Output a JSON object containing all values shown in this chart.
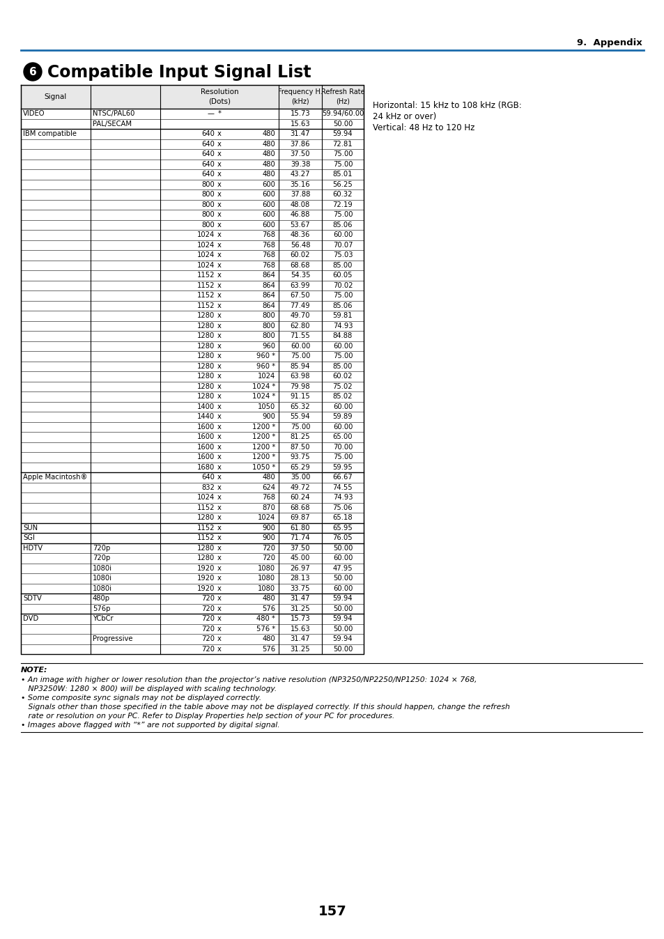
{
  "title": "Compatible Input Signal List",
  "section_num": "6",
  "appendix_label": "9.  Appendix",
  "page_num": "157",
  "side_note_line1": "Horizontal: 15 kHz to 108 kHz (RGB:",
  "side_note_line2": "24 kHz or over)",
  "side_note_line3": "Vertical: 48 Hz to 120 Hz",
  "rows": [
    [
      "VIDEO",
      "NTSC/PAL60",
      "—",
      "*",
      "15.73",
      "59.94/60.00"
    ],
    [
      "",
      "PAL/SECAM",
      "",
      "*",
      "15.63",
      "50.00"
    ],
    [
      "IBM compatible",
      "",
      "640",
      "480",
      "31.47",
      "59.94"
    ],
    [
      "",
      "",
      "640",
      "480",
      "37.86",
      "72.81"
    ],
    [
      "",
      "",
      "640",
      "480",
      "37.50",
      "75.00"
    ],
    [
      "",
      "",
      "640",
      "480",
      "39.38",
      "75.00"
    ],
    [
      "",
      "",
      "640",
      "480",
      "43.27",
      "85.01"
    ],
    [
      "",
      "",
      "800",
      "600",
      "35.16",
      "56.25"
    ],
    [
      "",
      "",
      "800",
      "600",
      "37.88",
      "60.32"
    ],
    [
      "",
      "",
      "800",
      "600",
      "48.08",
      "72.19"
    ],
    [
      "",
      "",
      "800",
      "600",
      "46.88",
      "75.00"
    ],
    [
      "",
      "",
      "800",
      "600",
      "53.67",
      "85.06"
    ],
    [
      "",
      "",
      "1024",
      "768",
      "48.36",
      "60.00"
    ],
    [
      "",
      "",
      "1024",
      "768",
      "56.48",
      "70.07"
    ],
    [
      "",
      "",
      "1024",
      "768",
      "60.02",
      "75.03"
    ],
    [
      "",
      "",
      "1024",
      "768",
      "68.68",
      "85.00"
    ],
    [
      "",
      "",
      "1152",
      "864",
      "54.35",
      "60.05"
    ],
    [
      "",
      "",
      "1152",
      "864",
      "63.99",
      "70.02"
    ],
    [
      "",
      "",
      "1152",
      "864",
      "67.50",
      "75.00"
    ],
    [
      "",
      "",
      "1152",
      "864",
      "77.49",
      "85.06"
    ],
    [
      "",
      "",
      "1280",
      "800",
      "49.70",
      "59.81"
    ],
    [
      "",
      "",
      "1280",
      "800",
      "62.80",
      "74.93"
    ],
    [
      "",
      "",
      "1280",
      "800",
      "71.55",
      "84.88"
    ],
    [
      "",
      "",
      "1280",
      "960",
      "60.00",
      "60.00"
    ],
    [
      "",
      "",
      "1280",
      "960 *",
      "75.00",
      "75.00"
    ],
    [
      "",
      "",
      "1280",
      "960 *",
      "85.94",
      "85.00"
    ],
    [
      "",
      "",
      "1280",
      "1024",
      "63.98",
      "60.02"
    ],
    [
      "",
      "",
      "1280",
      "1024 *",
      "79.98",
      "75.02"
    ],
    [
      "",
      "",
      "1280",
      "1024 *",
      "91.15",
      "85.02"
    ],
    [
      "",
      "",
      "1400",
      "1050",
      "65.32",
      "60.00"
    ],
    [
      "",
      "",
      "1440",
      "900",
      "55.94",
      "59.89"
    ],
    [
      "",
      "",
      "1600",
      "1200 *",
      "75.00",
      "60.00"
    ],
    [
      "",
      "",
      "1600",
      "1200 *",
      "81.25",
      "65.00"
    ],
    [
      "",
      "",
      "1600",
      "1200 *",
      "87.50",
      "70.00"
    ],
    [
      "",
      "",
      "1600",
      "1200 *",
      "93.75",
      "75.00"
    ],
    [
      "",
      "",
      "1680",
      "1050 *",
      "65.29",
      "59.95"
    ],
    [
      "Apple Macintosh®",
      "",
      "640",
      "480",
      "35.00",
      "66.67"
    ],
    [
      "",
      "",
      "832",
      "624",
      "49.72",
      "74.55"
    ],
    [
      "",
      "",
      "1024",
      "768",
      "60.24",
      "74.93"
    ],
    [
      "",
      "",
      "1152",
      "870",
      "68.68",
      "75.06"
    ],
    [
      "",
      "",
      "1280",
      "1024",
      "69.87",
      "65.18"
    ],
    [
      "SUN",
      "",
      "1152",
      "900",
      "61.80",
      "65.95"
    ],
    [
      "SGI",
      "",
      "1152",
      "900",
      "71.74",
      "76.05"
    ],
    [
      "HDTV",
      "720p",
      "1280",
      "720",
      "37.50",
      "50.00"
    ],
    [
      "",
      "720p",
      "1280",
      "720",
      "45.00",
      "60.00"
    ],
    [
      "",
      "1080i",
      "1920",
      "1080",
      "26.97",
      "47.95"
    ],
    [
      "",
      "1080i",
      "1920",
      "1080",
      "28.13",
      "50.00"
    ],
    [
      "",
      "1080i",
      "1920",
      "1080",
      "33.75",
      "60.00"
    ],
    [
      "SDTV",
      "480p",
      "720",
      "480",
      "31.47",
      "59.94"
    ],
    [
      "",
      "576p",
      "720",
      "576",
      "31.25",
      "50.00"
    ],
    [
      "DVD",
      "YCbCr",
      "720",
      "480 *",
      "15.73",
      "59.94"
    ],
    [
      "",
      "",
      "720",
      "576 *",
      "15.63",
      "50.00"
    ],
    [
      "",
      "Progressive",
      "720",
      "480",
      "31.47",
      "59.94"
    ],
    [
      "",
      "",
      "720",
      "576",
      "31.25",
      "50.00"
    ]
  ]
}
